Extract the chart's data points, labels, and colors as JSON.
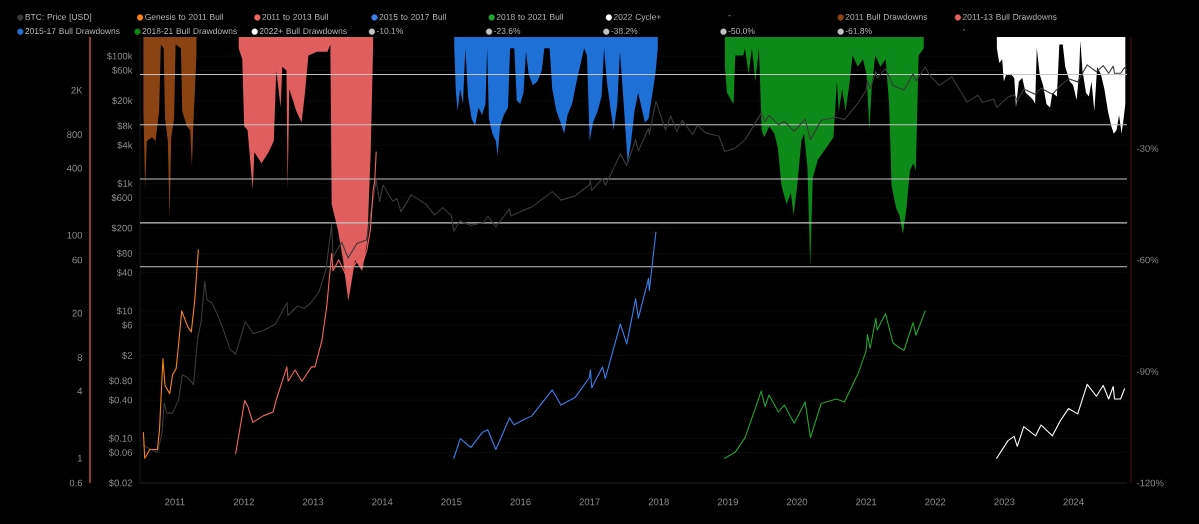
{
  "chart_data": [
    {
      "type": "line",
      "xlim": [
        "2010-07-01",
        "2024-10-10"
      ],
      "xticks": [
        {
          "value": "2011-01-01",
          "label": "2011"
        },
        {
          "value": "2012-01-01",
          "label": "2012"
        },
        {
          "value": "2013-01-01",
          "label": "2013"
        },
        {
          "value": "2014-01-01",
          "label": "2014"
        },
        {
          "value": "2015-01-01",
          "label": "2015"
        },
        {
          "value": "2016-01-01",
          "label": "2016"
        },
        {
          "value": "2017-01-01",
          "label": "2017"
        },
        {
          "value": "2018-01-01",
          "label": "2018"
        },
        {
          "value": "2019-01-01",
          "label": "2019"
        },
        {
          "value": "2020-01-01",
          "label": "2020"
        },
        {
          "value": "2021-01-01",
          "label": "2021"
        },
        {
          "value": "2022-01-01",
          "label": "2022"
        },
        {
          "value": "2023-01-01",
          "label": "2023"
        },
        {
          "value": "2024-01-01",
          "label": "2024"
        }
      ],
      "ylim": [
        0.02,
        200000
      ],
      "yticks": [
        {
          "value": 0.02,
          "label": "$0.02"
        },
        {
          "value": 0.06,
          "label": "$0.06"
        },
        {
          "value": 0.1,
          "label": "$0.10"
        },
        {
          "value": 0.4,
          "label": "$0.40"
        },
        {
          "value": 0.8,
          "label": "$0.80"
        },
        {
          "value": 2,
          "label": "$2"
        },
        {
          "value": 6,
          "label": "$6"
        },
        {
          "value": 10,
          "label": "$10"
        },
        {
          "value": 40,
          "label": "$40"
        },
        {
          "value": 80,
          "label": "$80"
        },
        {
          "value": 200,
          "label": "$200"
        },
        {
          "value": 600,
          "label": "$600"
        },
        {
          "value": 1000,
          "label": "$1k"
        },
        {
          "value": 4000,
          "label": "$4k"
        },
        {
          "value": 8000,
          "label": "$8k"
        },
        {
          "value": 20000,
          "label": "$20k"
        },
        {
          "value": 60000,
          "label": "$60k"
        },
        {
          "value": 100000,
          "label": "$100k"
        }
      ],
      "y2lim": [
        -120,
        0
      ],
      "y2ticks": [
        {
          "value": -120,
          "label": "-120%"
        },
        {
          "value": -90,
          "label": "-90%"
        },
        {
          "value": -60,
          "label": "-60%"
        },
        {
          "value": -30,
          "label": "-30%"
        }
      ],
      "log": "y",
      "grid": "y",
      "legend": "top left",
      "series": [
        {
          "name": "BTC: Price [USD]",
          "color": "#3a3a3a",
          "x": [
            "2010-07-18",
            "2010-08-15",
            "2010-10-01",
            "2010-10-25",
            "2010-11-06",
            "2010-11-20",
            "2010-12-20",
            "2011-01-20",
            "2011-02-10",
            "2011-03-10",
            "2011-04-10",
            "2011-04-30",
            "2011-05-20",
            "2011-06-08",
            "2011-06-20",
            "2011-07-15",
            "2011-08-20",
            "2011-09-15",
            "2011-10-20",
            "2011-11-18",
            "2012-01-08",
            "2012-02-20",
            "2012-04-15",
            "2012-06-15",
            "2012-08-16",
            "2012-08-20",
            "2012-10-10",
            "2012-11-15",
            "2012-12-20",
            "2013-02-01",
            "2013-03-10",
            "2013-04-09",
            "2013-04-16",
            "2013-06-01",
            "2013-07-05",
            "2013-08-20",
            "2013-10-10",
            "2013-11-30",
            "2013-12-18",
            "2014-01-05",
            "2014-02-25",
            "2014-03-20",
            "2014-04-10",
            "2014-06-03",
            "2014-08-18",
            "2014-10-05",
            "2014-11-15",
            "2014-12-31",
            "2015-01-14",
            "2015-02-15",
            "2015-04-14",
            "2015-06-20",
            "2015-07-12",
            "2015-08-24",
            "2015-11-04",
            "2015-11-11",
            "2016-01-15",
            "2016-03-01",
            "2016-06-17",
            "2016-08-02",
            "2016-10-15",
            "2016-12-31",
            "2017-01-05",
            "2017-01-12",
            "2017-03-10",
            "2017-03-25",
            "2017-06-12",
            "2017-07-16",
            "2017-09-01",
            "2017-09-15",
            "2017-11-08",
            "2017-11-12",
            "2017-12-17",
            "2018-02-06",
            "2018-03-05",
            "2018-04-06",
            "2018-05-05",
            "2018-06-29",
            "2018-07-24",
            "2018-09-08",
            "2018-11-14",
            "2018-12-15",
            "2019-02-08",
            "2019-04-02",
            "2019-06-26",
            "2019-07-16",
            "2019-08-06",
            "2019-09-25",
            "2019-10-26",
            "2019-12-17",
            "2020-02-13",
            "2020-03-12",
            "2020-05-08",
            "2020-07-27",
            "2020-09-08",
            "2020-11-20",
            "2020-12-31",
            "2021-01-08",
            "2021-01-22",
            "2021-02-21",
            "2021-02-28",
            "2021-04-13",
            "2021-05-23",
            "2021-06-22",
            "2021-07-20",
            "2021-09-06",
            "2021-09-21",
            "2021-11-09",
            "2021-12-04",
            "2022-01-22",
            "2022-03-29",
            "2022-05-12",
            "2022-06-18",
            "2022-08-14",
            "2022-09-06",
            "2022-11-05",
            "2022-11-21",
            "2023-01-20",
            "2023-02-21",
            "2023-03-10",
            "2023-04-13",
            "2023-06-15",
            "2023-07-13",
            "2023-09-11",
            "2023-10-24",
            "2023-12-05",
            "2024-01-23",
            "2024-03-13",
            "2024-05-01",
            "2024-06-06",
            "2024-07-05",
            "2024-07-29",
            "2024-08-05",
            "2024-09-06",
            "2024-09-27",
            "2024-10-10"
          ],
          "values": [
            0.08,
            0.07,
            0.06,
            0.12,
            0.36,
            0.25,
            0.25,
            0.4,
            1.0,
            0.9,
            0.7,
            3.5,
            7,
            29,
            15,
            13.5,
            8,
            5,
            2.5,
            2.1,
            6.8,
            4.4,
            5,
            6.2,
            13.5,
            8.5,
            12,
            11,
            13.5,
            20,
            45,
            230,
            70,
            120,
            68,
            115,
            130,
            1130,
            520,
            950,
            530,
            580,
            360,
            665,
            480,
            320,
            420,
            320,
            180,
            260,
            220,
            245,
            310,
            210,
            400,
            310,
            380,
            430,
            750,
            550,
            640,
            960,
            1130,
            780,
            1200,
            940,
            2900,
            1930,
            4900,
            3250,
            7400,
            5900,
            19500,
            6900,
            11500,
            6600,
            9800,
            5900,
            8200,
            6200,
            5600,
            3200,
            3600,
            4900,
            12900,
            9400,
            11800,
            8400,
            9500,
            6600,
            10300,
            4900,
            9900,
            11000,
            10100,
            18700,
            29000,
            41000,
            31000,
            57500,
            45200,
            63500,
            34700,
            31600,
            29800,
            52700,
            40700,
            67500,
            49200,
            35000,
            47400,
            28900,
            19000,
            24400,
            18800,
            21300,
            15800,
            22700,
            24800,
            20200,
            30400,
            25100,
            31400,
            25200,
            34500,
            44100,
            39500,
            73100,
            57000,
            71100,
            54000,
            69800,
            54000,
            53900,
            66000,
            60300
          ]
        },
        {
          "name": "-"
        },
        {
          "name": "2011 Bull Drawdowns",
          "color": "#8c4314",
          "type": "area",
          "axis": "y2",
          "x": [
            "2010-07-19",
            "2010-07-28",
            "2010-08-06",
            "2010-09-03",
            "2010-09-21",
            "2010-10-10",
            "2010-10-19",
            "2010-11-03",
            "2010-11-10",
            "2010-11-25",
            "2010-12-04",
            "2010-12-13",
            "2010-12-28",
            "2011-01-05",
            "2011-02-02",
            "2011-02-09",
            "2011-03-05",
            "2011-03-23",
            "2011-04-01",
            "2011-04-10",
            "2011-04-25"
          ],
          "values": [
            -20,
            -41,
            -28,
            -27,
            -28,
            -20,
            -2,
            -3,
            -22,
            -28,
            -49,
            -27,
            -22,
            -2,
            -3,
            -20,
            -24,
            -25,
            -35,
            -22,
            -5
          ]
        },
        {
          "name": "2011-13 Bull Drawdowns",
          "color": "#e05e5e",
          "type": "area",
          "axis": "y2",
          "x": [
            "2011-12-04",
            "2011-12-23",
            "2012-01-02",
            "2012-01-20",
            "2012-02-16",
            "2012-02-25",
            "2012-04-03",
            "2012-05-10",
            "2012-06-07",
            "2012-06-20",
            "2012-07-13",
            "2012-07-22",
            "2012-08-13",
            "2012-08-19",
            "2012-08-28",
            "2012-10-04",
            "2012-11-01",
            "2012-11-19",
            "2012-12-07",
            "2013-01-22",
            "2013-03-18",
            "2013-04-02",
            "2013-04-09",
            "2013-05-12",
            "2013-06-08",
            "2013-07-06",
            "2013-08-11",
            "2013-09-17",
            "2013-10-14",
            "2013-11-01",
            "2013-11-14"
          ],
          "values": [
            -3,
            -6,
            -24,
            -25,
            -41,
            -31,
            -34,
            -31,
            -28,
            -9,
            -19,
            -8,
            -9,
            -41,
            -14,
            -20,
            -23,
            -15,
            -5,
            -4,
            -4,
            -2,
            -45,
            -52,
            -60,
            -71,
            -60,
            -63,
            -55,
            -31,
            -2
          ]
        },
        {
          "name": "2015-17 Bull Drawdowns",
          "color": "#1e6fd6",
          "type": "area",
          "axis": "y2",
          "x": [
            "2015-01-16",
            "2015-01-25",
            "2015-02-03",
            "2015-02-16",
            "2015-03-03",
            "2015-03-16",
            "2015-03-30",
            "2015-04-18",
            "2015-05-06",
            "2015-05-24",
            "2015-06-12",
            "2015-06-30",
            "2015-07-09",
            "2015-07-18",
            "2015-08-06",
            "2015-08-24",
            "2015-09-02",
            "2015-09-15",
            "2015-10-05",
            "2015-10-27",
            "2015-11-07",
            "2015-11-29",
            "2015-12-12",
            "2015-12-30",
            "2016-01-17",
            "2016-01-30",
            "2016-02-13",
            "2016-03-06",
            "2016-03-30",
            "2016-04-23",
            "2016-05-06",
            "2016-06-03",
            "2016-06-17",
            "2016-07-09",
            "2016-07-31",
            "2016-08-19",
            "2016-09-06",
            "2016-09-30",
            "2016-10-24",
            "2016-11-15",
            "2016-12-03",
            "2016-12-18",
            "2017-01-01",
            "2017-01-19",
            "2017-02-12",
            "2017-03-05",
            "2017-03-18",
            "2017-04-02",
            "2017-04-20",
            "2017-05-08",
            "2017-05-27",
            "2017-06-10",
            "2017-06-27",
            "2017-07-21",
            "2017-08-08",
            "2017-08-26",
            "2017-09-14",
            "2017-10-02",
            "2017-10-20",
            "2017-11-08",
            "2017-11-26",
            "2017-12-14",
            "2017-12-27"
          ],
          "values": [
            -3,
            -15,
            -20,
            -14,
            -18,
            -3,
            -16,
            -22,
            -24,
            -19,
            -21,
            -18,
            -3,
            -22,
            -26,
            -28,
            -32,
            -24,
            -21,
            -19,
            -3,
            -3,
            -17,
            -18,
            -15,
            -4,
            -10,
            -13,
            -12,
            -9,
            -3,
            -3,
            -14,
            -20,
            -23,
            -26,
            -21,
            -18,
            -12,
            -7,
            -3,
            -5,
            -28,
            -23,
            -20,
            -16,
            -3,
            -12,
            -19,
            -25,
            -18,
            -4,
            -16,
            -34,
            -28,
            -20,
            -15,
            -19,
            -23,
            -22,
            -16,
            -10,
            -3
          ]
        },
        {
          "name": "2018-21 Bull Drawdowns",
          "color": "#0d8a1a",
          "type": "area",
          "axis": "y2",
          "x": [
            "2018-12-16",
            "2018-12-27",
            "2019-01-18",
            "2019-01-31",
            "2019-02-09",
            "2019-03-23",
            "2019-04-01",
            "2019-04-20",
            "2019-05-08",
            "2019-05-26",
            "2019-06-14",
            "2019-06-28",
            "2019-07-11",
            "2019-08-08",
            "2019-09-04",
            "2019-09-22",
            "2019-10-11",
            "2019-11-07",
            "2019-11-29",
            "2019-12-14",
            "2020-01-02",
            "2020-01-24",
            "2020-02-07",
            "2020-02-25",
            "2020-03-11",
            "2020-03-24",
            "2020-04-20",
            "2020-05-18",
            "2020-06-15",
            "2020-07-12",
            "2020-07-30",
            "2020-08-09",
            "2020-08-27",
            "2020-09-14",
            "2020-10-06",
            "2020-10-21",
            "2020-11-18",
            "2020-12-15",
            "2021-01-03",
            "2021-01-18",
            "2021-01-30",
            "2021-02-18",
            "2021-03-17",
            "2021-04-14",
            "2021-05-02",
            "2021-05-15",
            "2021-06-08",
            "2021-06-26",
            "2021-07-14",
            "2021-08-02",
            "2021-08-20",
            "2021-09-07",
            "2021-09-20",
            "2021-10-05",
            "2021-11-01"
          ],
          "values": [
            -8,
            -15,
            -17,
            -18,
            -5,
            -5,
            -3,
            -10,
            -3,
            -12,
            -3,
            -25,
            -27,
            -24,
            -26,
            -30,
            -40,
            -45,
            -42,
            -48,
            -40,
            -28,
            -26,
            -35,
            -62,
            -38,
            -33,
            -31,
            -29,
            -27,
            -12,
            -20,
            -14,
            -20,
            -12,
            -5,
            -8,
            -6,
            -10,
            -25,
            -14,
            -5,
            -8,
            -6,
            -18,
            -40,
            -46,
            -48,
            -53,
            -46,
            -36,
            -34,
            -36,
            -5,
            -3
          ]
        },
        {
          "name": "2022+ Bull Drawdowns",
          "color": "#ffffff",
          "type": "area",
          "axis": "y2",
          "x": [
            "2022-11-22",
            "2022-12-05",
            "2022-12-20",
            "2022-12-29",
            "2023-01-11",
            "2023-02-04",
            "2023-02-22",
            "2023-03-03",
            "2023-03-18",
            "2023-04-05",
            "2023-04-23",
            "2023-05-15",
            "2023-06-03",
            "2023-06-12",
            "2023-06-21",
            "2023-07-06",
            "2023-07-24",
            "2023-08-11",
            "2023-08-30",
            "2023-09-11",
            "2023-10-05",
            "2023-10-18",
            "2023-11-05",
            "2023-11-18",
            "2023-12-12",
            "2023-12-30",
            "2024-01-17",
            "2024-01-30",
            "2024-02-06",
            "2024-02-17",
            "2024-03-07",
            "2024-03-22",
            "2024-04-05",
            "2024-04-20",
            "2024-05-05",
            "2024-05-25",
            "2024-06-12",
            "2024-07-01",
            "2024-07-19",
            "2024-08-01",
            "2024-08-16",
            "2024-08-29",
            "2024-09-11",
            "2024-09-22",
            "2024-10-01"
          ],
          "values": [
            -3,
            -7,
            -6,
            -12,
            -10,
            -10,
            -11,
            -19,
            -12,
            -11,
            -15,
            -16,
            -17,
            -18,
            -3,
            -10,
            -13,
            -18,
            -19,
            -15,
            -16,
            -2,
            -2,
            -8,
            -12,
            -13,
            -17,
            -10,
            -1,
            -9,
            -15,
            -16,
            -12,
            -20,
            -8,
            -10,
            -14,
            -20,
            -24,
            -26,
            -25,
            -21,
            -26,
            -22,
            -18
          ]
        },
        {
          "name": "-10.1%",
          "color": "#c4c4c4",
          "axis": "y2",
          "x": [
            "2010-07-01",
            "2024-10-10"
          ],
          "values": [
            -10.1,
            -10.1
          ]
        },
        {
          "name": "-23.6%",
          "color": "#c4c4c4",
          "axis": "y2",
          "x": [
            "2010-07-01",
            "2024-10-10"
          ],
          "values": [
            -23.6,
            -23.6
          ]
        },
        {
          "name": "-38.2%",
          "color": "#c4c4c4",
          "axis": "y2",
          "x": [
            "2010-07-01",
            "2024-10-10"
          ],
          "values": [
            -38.2,
            -38.2
          ]
        },
        {
          "name": "-50.0%",
          "color": "#c4c4c4",
          "axis": "y2",
          "x": [
            "2010-07-01",
            "2024-10-10"
          ],
          "values": [
            -50.0,
            -50.0
          ]
        },
        {
          "name": "-61.8%",
          "color": "#c4c4c4",
          "axis": "y2",
          "x": [
            "2010-07-01",
            "2024-10-10"
          ],
          "values": [
            -61.8,
            -61.8
          ]
        },
        {
          "name": "-"
        }
      ]
    },
    {
      "type": "line",
      "xlim": [
        "2010-07-01",
        "2024-10-10"
      ],
      "ylim": [
        0.6,
        6000
      ],
      "yticks": [
        0.6,
        1,
        4,
        8,
        20,
        60,
        100,
        400,
        800,
        {
          "value": 2000,
          "label": "2K"
        }
      ],
      "log": "y",
      "legend": "top left",
      "tick_labels": "y",
      "series": [
        {
          "name": "Genesis to 2011 Bull",
          "color": "#f7821b",
          "x": [
            "2010-07-19",
            "2010-07-26",
            "2010-08-22",
            "2010-10-01",
            "2010-10-12",
            "2010-10-30",
            "2010-11-10",
            "2010-12-05",
            "2010-12-20",
            "2011-01-08",
            "2011-01-22",
            "2011-02-06",
            "2011-02-21",
            "2011-03-11",
            "2011-03-29",
            "2011-04-16",
            "2011-05-05"
          ],
          "values": [
            1.7,
            1.0,
            1.2,
            1.2,
            1.8,
            7.8,
            4.5,
            3.8,
            5.6,
            6.4,
            11,
            21,
            18,
            15,
            13.6,
            26,
            74
          ]
        },
        {
          "name": "2011 to 2013 Bull",
          "color": "#f46565",
          "x": [
            "2011-11-18",
            "2012-01-05",
            "2012-01-22",
            "2012-02-17",
            "2012-04-12",
            "2012-06-03",
            "2012-06-21",
            "2012-08-15",
            "2012-08-22",
            "2012-09-27",
            "2012-11-03",
            "2012-12-24",
            "2013-01-11",
            "2013-02-17",
            "2013-03-14",
            "2013-04-09",
            "2013-04-16",
            "2013-05-16",
            "2013-07-06",
            "2013-07-17",
            "2013-08-19",
            "2013-09-24",
            "2013-10-12",
            "2013-10-30",
            "2013-11-14",
            "2013-11-22",
            "2013-11-30"
          ],
          "values": [
            1.1,
            3.3,
            2.9,
            2.1,
            2.4,
            2.6,
            3.4,
            6.6,
            4.9,
            6.2,
            4.9,
            6.6,
            6.6,
            11.5,
            23,
            69,
            48,
            60,
            40,
            48,
            58,
            60,
            74,
            111,
            255,
            300,
            558
          ]
        },
        {
          "name": "2015 to 2017 Bull",
          "color": "#3d80ea",
          "x": [
            "2015-01-14",
            "2015-02-17",
            "2015-04-14",
            "2015-06-13",
            "2015-07-12",
            "2015-08-24",
            "2015-11-04",
            "2015-11-28",
            "2016-01-15",
            "2016-03-01",
            "2016-06-17",
            "2016-08-02",
            "2016-10-15",
            "2016-12-31",
            "2017-01-05",
            "2017-01-12",
            "2017-03-10",
            "2017-03-25",
            "2017-06-12",
            "2017-07-16",
            "2017-09-01",
            "2017-09-15",
            "2017-11-08",
            "2017-11-12",
            "2017-12-17"
          ],
          "values": [
            1.0,
            1.5,
            1.25,
            1.7,
            1.8,
            1.2,
            2.3,
            2.0,
            2.2,
            2.4,
            4.1,
            3.0,
            3.5,
            5.3,
            6.2,
            4.3,
            6.6,
            5.2,
            16,
            10.6,
            27,
            18,
            41,
            32,
            107
          ]
        },
        {
          "name": "2018 to 2021 Bull",
          "color": "#22a52e",
          "x": [
            "2018-12-15",
            "2019-02-08",
            "2019-04-02",
            "2019-06-26",
            "2019-07-16",
            "2019-08-06",
            "2019-09-25",
            "2019-10-26",
            "2019-12-17",
            "2020-02-13",
            "2020-03-12",
            "2020-05-08",
            "2020-07-27",
            "2020-09-08",
            "2020-11-20",
            "2020-12-31",
            "2021-01-08",
            "2021-01-22",
            "2021-02-21",
            "2021-02-28",
            "2021-04-13",
            "2021-05-23",
            "2021-06-22",
            "2021-07-20",
            "2021-09-06",
            "2021-09-21",
            "2021-11-09"
          ],
          "values": [
            1.0,
            1.13,
            1.53,
            4.0,
            2.9,
            3.7,
            2.6,
            3.0,
            2.06,
            3.2,
            1.53,
            3.1,
            3.4,
            3.2,
            5.8,
            9.1,
            12.8,
            9.7,
            18,
            14.1,
            19.8,
            10.8,
            9.9,
            9.3,
            16.5,
            12.7,
            21
          ]
        },
        {
          "name": "2022 Cycle+",
          "color": "#ffffff",
          "x": [
            "2022-11-21",
            "2023-01-20",
            "2023-02-21",
            "2023-03-10",
            "2023-04-13",
            "2023-06-15",
            "2023-07-13",
            "2023-09-11",
            "2023-10-24",
            "2023-12-05",
            "2024-01-23",
            "2024-03-13",
            "2024-05-01",
            "2024-06-06",
            "2024-07-05",
            "2024-07-29",
            "2024-08-05",
            "2024-09-06",
            "2024-09-27"
          ],
          "values": [
            1.0,
            1.44,
            1.57,
            1.28,
            1.92,
            1.59,
            1.99,
            1.59,
            2.18,
            2.79,
            2.5,
            4.6,
            3.6,
            4.5,
            3.4,
            4.4,
            3.4,
            3.4,
            4.2
          ]
        }
      ]
    }
  ]
}
